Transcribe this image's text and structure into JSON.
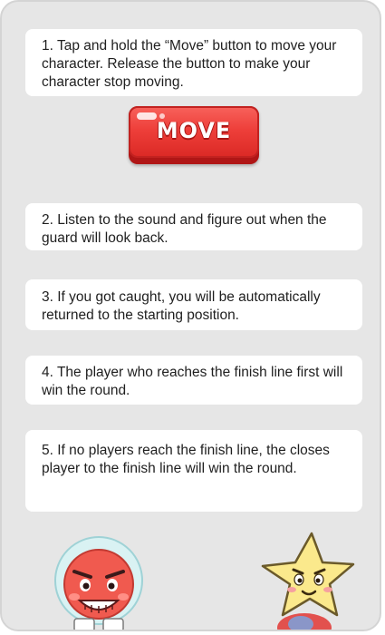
{
  "instructions": [
    "1. Tap and hold the “Move” button to move your character. Release the button to make your character stop moving.",
    "2. Listen to the sound and figure out when the guard will look back.",
    "3. If you got caught, you will be automatically returned to the starting position.",
    "4. The player who reaches the finish line first will win the round.",
    "5. If no players reach the finish line, the closes player to the finish line will win the round."
  ],
  "move_button": {
    "label": "MOVE"
  },
  "colors": {
    "panel_bg": "#e6e6e6",
    "card_bg": "#ffffff",
    "button_red": "#ee3f3a",
    "text": "#1f1f1f"
  },
  "icons": {
    "left_character": "red-round-face-character",
    "right_character": "yellow-star-character"
  }
}
